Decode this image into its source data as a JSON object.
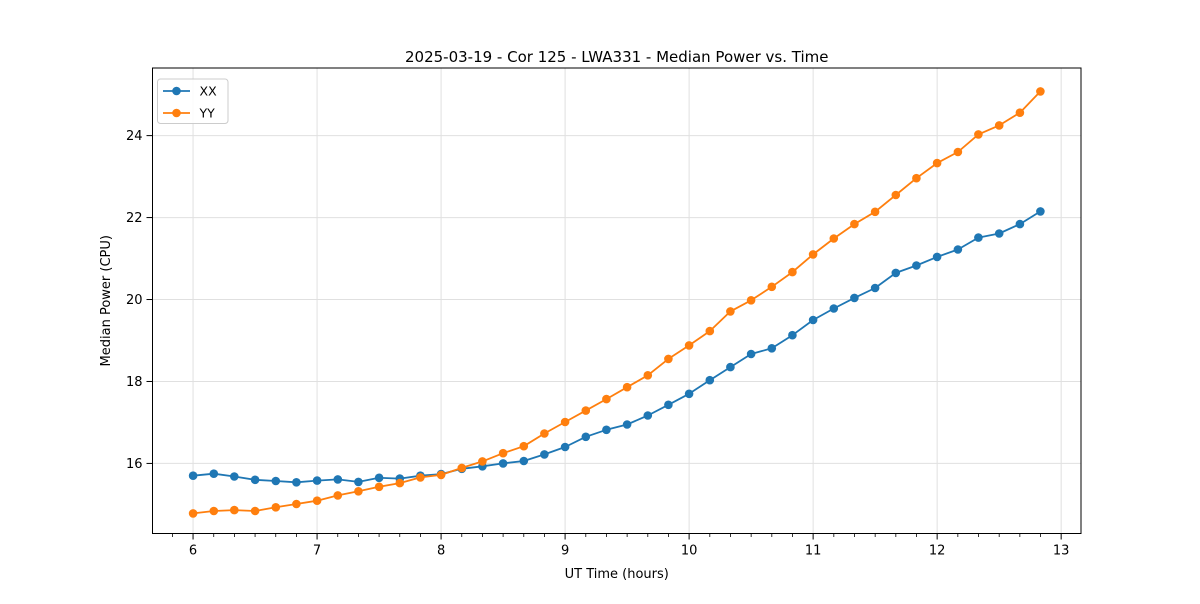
{
  "title": "2025-03-19 - Cor 125 - LWA331 - Median Power vs. Time",
  "colors": {
    "xx_series": "#1f77b4",
    "yy_series": "#ff7f0e",
    "grid": "#e0e0e0",
    "spine": "#000000",
    "legend_border": "#cccccc",
    "background": "#ffffff"
  },
  "chart_data": {
    "type": "line",
    "title": "2025-03-19 - Cor 125 - LWA331 - Median Power vs. Time",
    "xlabel": "UT Time (hours)",
    "ylabel": "Median Power (CPU)",
    "xlim": [
      5.673,
      13.16
    ],
    "ylim": [
      14.29,
      25.65
    ],
    "xticks": [
      6,
      7,
      8,
      9,
      10,
      11,
      12,
      13
    ],
    "yticks": [
      16,
      18,
      20,
      22,
      24
    ],
    "x_minor_step": 0.16667,
    "grid": true,
    "legend_position": "upper left",
    "marker": "o",
    "x": [
      6.0,
      6.167,
      6.333,
      6.5,
      6.667,
      6.833,
      7.0,
      7.167,
      7.333,
      7.5,
      7.667,
      7.833,
      8.0,
      8.167,
      8.333,
      8.5,
      8.667,
      8.833,
      9.0,
      9.167,
      9.333,
      9.5,
      9.667,
      9.833,
      10.0,
      10.167,
      10.333,
      10.5,
      10.667,
      10.833,
      11.0,
      11.167,
      11.333,
      11.5,
      11.667,
      11.833,
      12.0,
      12.167,
      12.333,
      12.5,
      12.667,
      12.833
    ],
    "series": [
      {
        "name": "XX",
        "color": "#1f77b4",
        "values": [
          15.7,
          15.75,
          15.68,
          15.6,
          15.57,
          15.54,
          15.58,
          15.61,
          15.55,
          15.65,
          15.63,
          15.7,
          15.74,
          15.87,
          15.93,
          16.0,
          16.06,
          16.22,
          16.4,
          16.65,
          16.82,
          16.95,
          17.17,
          17.43,
          17.7,
          18.03,
          18.35,
          18.67,
          18.81,
          19.13,
          19.5,
          19.78,
          20.04,
          20.28,
          20.65,
          20.83,
          21.04,
          21.22,
          21.51,
          21.61,
          21.84,
          22.15
        ]
      },
      {
        "name": "YY",
        "color": "#ff7f0e",
        "values": [
          14.78,
          14.84,
          14.86,
          14.84,
          14.93,
          15.01,
          15.09,
          15.22,
          15.32,
          15.43,
          15.52,
          15.66,
          15.72,
          15.89,
          16.05,
          16.25,
          16.42,
          16.73,
          17.01,
          17.29,
          17.57,
          17.86,
          18.15,
          18.55,
          18.88,
          19.23,
          19.71,
          19.98,
          20.31,
          20.67,
          21.1,
          21.49,
          21.84,
          22.14,
          22.55,
          22.96,
          23.33,
          23.6,
          24.03,
          24.25,
          24.56,
          25.08
        ]
      }
    ]
  }
}
